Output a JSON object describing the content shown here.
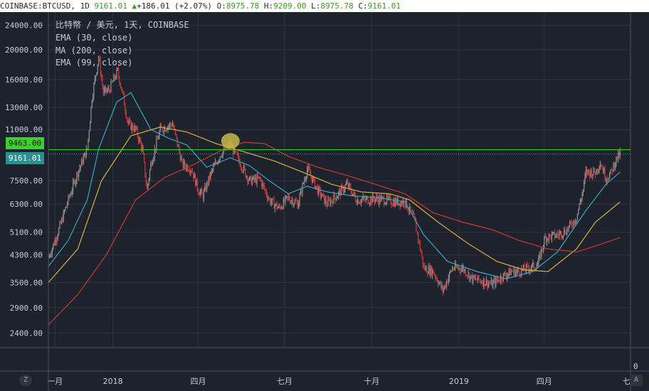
{
  "header": {
    "symbol": "COINBASE:BTCUSD, 1D",
    "last": "9161.01",
    "change_arrow": "▲",
    "change": "+186.01 (+2.07%)",
    "o_label": "O:",
    "o": "8975.78",
    "h_label": "H:",
    "h": "9209.00",
    "l_label": "L:",
    "l": "8975.78",
    "c_label": "C:",
    "c": "9161.01"
  },
  "overlay": {
    "title": "比特幣 / 美元, 1天, COINBASE",
    "indicators": [
      "EMA (30, close)",
      "MA (200, close)",
      "EMA (99, close)"
    ]
  },
  "price_badges": {
    "green_line": "9463.00",
    "last_price": "9161.01",
    "bottom_axis": "0"
  },
  "buttons": {
    "zoom": "Z",
    "auto": "A"
  },
  "colors": {
    "background": "#1e222d",
    "grid": "#2f3442",
    "candle_up": "#8f8f8f",
    "candle_down": "#c83a3a",
    "ema30": "#3aa7bf",
    "ma200": "#c83a34",
    "ema99": "#d4b33a",
    "level_line": "#3bd12a",
    "highlight": "#c9b64a"
  },
  "chart_data": {
    "type": "candlestick",
    "y_scale": "log",
    "ylim": [
      2150,
      26500
    ],
    "y_ticks": [
      24000,
      20000,
      16000,
      13000,
      11000,
      9463,
      7500,
      6300,
      5100,
      4300,
      3500,
      2900,
      2400
    ],
    "y_tick_labels": [
      "24000.00",
      "20000.00",
      "16000.00",
      "13000.00",
      "11000.00",
      "9463.00",
      "7500.00",
      "6300.00",
      "5100.00",
      "4300.00",
      "3500.00",
      "2900.00",
      "2400.00"
    ],
    "x_labels": [
      "一月",
      "2018",
      "四月",
      "七月",
      "十月",
      "2019",
      "四月",
      "七月"
    ],
    "x_range": [
      "2017-10-25",
      "2019-07-01"
    ],
    "x_label_dates": [
      "2017-11-01",
      "2018-01-01",
      "2018-04-01",
      "2018-07-01",
      "2018-10-01",
      "2019-01-01",
      "2019-04-01",
      "2019-07-01"
    ],
    "horizontal_level": 9463,
    "last_price": 9161.01,
    "highlight_point": {
      "date": "2018-05-05",
      "value": 10100
    },
    "series": [
      {
        "name": "BTCUSD",
        "closes": [
          [
            "2017-10-25",
            4200
          ],
          [
            "2017-11-05",
            5200
          ],
          [
            "2017-11-15",
            6500
          ],
          [
            "2017-11-25",
            8000
          ],
          [
            "2017-12-05",
            9500
          ],
          [
            "2017-12-10",
            14000
          ],
          [
            "2017-12-17",
            19000
          ],
          [
            "2017-12-22",
            14500
          ],
          [
            "2017-12-28",
            14800
          ],
          [
            "2018-01-06",
            17000
          ],
          [
            "2018-01-12",
            14000
          ],
          [
            "2018-01-17",
            11500
          ],
          [
            "2018-01-25",
            11000
          ],
          [
            "2018-02-01",
            9500
          ],
          [
            "2018-02-06",
            7000
          ],
          [
            "2018-02-10",
            8500
          ],
          [
            "2018-02-20",
            11000
          ],
          [
            "2018-03-05",
            11500
          ],
          [
            "2018-03-15",
            8500
          ],
          [
            "2018-03-25",
            8200
          ],
          [
            "2018-04-01",
            7000
          ],
          [
            "2018-04-06",
            6700
          ],
          [
            "2018-04-15",
            8000
          ],
          [
            "2018-04-25",
            9200
          ],
          [
            "2018-05-05",
            9800
          ],
          [
            "2018-05-15",
            8600
          ],
          [
            "2018-05-25",
            7500
          ],
          [
            "2018-06-05",
            7600
          ],
          [
            "2018-06-15",
            6500
          ],
          [
            "2018-06-25",
            6100
          ],
          [
            "2018-07-05",
            6600
          ],
          [
            "2018-07-15",
            6300
          ],
          [
            "2018-07-25",
            8200
          ],
          [
            "2018-08-05",
            7000
          ],
          [
            "2018-08-15",
            6300
          ],
          [
            "2018-08-25",
            6700
          ],
          [
            "2018-09-05",
            7300
          ],
          [
            "2018-09-15",
            6500
          ],
          [
            "2018-09-25",
            6500
          ],
          [
            "2018-10-05",
            6550
          ],
          [
            "2018-10-15",
            6500
          ],
          [
            "2018-10-25",
            6400
          ],
          [
            "2018-11-05",
            6400
          ],
          [
            "2018-11-15",
            5600
          ],
          [
            "2018-11-20",
            4700
          ],
          [
            "2018-11-25",
            3900
          ],
          [
            "2018-12-05",
            3800
          ],
          [
            "2018-12-15",
            3300
          ],
          [
            "2018-12-25",
            3900
          ],
          [
            "2019-01-05",
            3900
          ],
          [
            "2019-01-15",
            3600
          ],
          [
            "2019-01-25",
            3550
          ],
          [
            "2019-02-05",
            3450
          ],
          [
            "2019-02-15",
            3650
          ],
          [
            "2019-02-25",
            3800
          ],
          [
            "2019-03-05",
            3800
          ],
          [
            "2019-03-15",
            3900
          ],
          [
            "2019-03-25",
            4000
          ],
          [
            "2019-04-02",
            4900
          ],
          [
            "2019-04-15",
            5000
          ],
          [
            "2019-04-25",
            5200
          ],
          [
            "2019-05-05",
            5700
          ],
          [
            "2019-05-12",
            7000
          ],
          [
            "2019-05-15",
            8000
          ],
          [
            "2019-05-25",
            8000
          ],
          [
            "2019-05-30",
            8600
          ],
          [
            "2019-06-05",
            7700
          ],
          [
            "2019-06-10",
            7900
          ],
          [
            "2019-06-15",
            8700
          ],
          [
            "2019-06-20",
            9161
          ]
        ]
      },
      {
        "name": "EMA (30, close)",
        "points": [
          [
            "2017-10-25",
            3950
          ],
          [
            "2017-11-15",
            4800
          ],
          [
            "2017-12-05",
            6500
          ],
          [
            "2017-12-17",
            9500
          ],
          [
            "2018-01-05",
            13500
          ],
          [
            "2018-01-20",
            14500
          ],
          [
            "2018-02-10",
            11000
          ],
          [
            "2018-03-01",
            10300
          ],
          [
            "2018-03-20",
            9800
          ],
          [
            "2018-04-10",
            8300
          ],
          [
            "2018-05-05",
            8900
          ],
          [
            "2018-05-25",
            8400
          ],
          [
            "2018-06-15",
            7500
          ],
          [
            "2018-07-05",
            6800
          ],
          [
            "2018-07-25",
            7200
          ],
          [
            "2018-08-15",
            6900
          ],
          [
            "2018-09-10",
            6700
          ],
          [
            "2018-10-10",
            6600
          ],
          [
            "2018-11-05",
            6400
          ],
          [
            "2018-11-25",
            5000
          ],
          [
            "2018-12-20",
            4100
          ],
          [
            "2019-01-20",
            3800
          ],
          [
            "2019-02-20",
            3600
          ],
          [
            "2019-03-20",
            3800
          ],
          [
            "2019-04-15",
            4400
          ],
          [
            "2019-05-15",
            6000
          ],
          [
            "2019-06-05",
            7300
          ],
          [
            "2019-06-20",
            8000
          ]
        ]
      },
      {
        "name": "EMA (99, close)",
        "points": [
          [
            "2017-10-25",
            3500
          ],
          [
            "2017-11-25",
            4500
          ],
          [
            "2017-12-20",
            7500
          ],
          [
            "2018-01-20",
            10500
          ],
          [
            "2018-02-20",
            11200
          ],
          [
            "2018-03-20",
            10800
          ],
          [
            "2018-04-20",
            9900
          ],
          [
            "2018-05-20",
            9300
          ],
          [
            "2018-06-20",
            8700
          ],
          [
            "2018-07-20",
            8000
          ],
          [
            "2018-08-20",
            7300
          ],
          [
            "2018-09-20",
            6900
          ],
          [
            "2018-10-20",
            6800
          ],
          [
            "2018-11-10",
            6500
          ],
          [
            "2018-12-10",
            5500
          ],
          [
            "2019-01-10",
            4700
          ],
          [
            "2019-02-10",
            4100
          ],
          [
            "2019-03-10",
            3850
          ],
          [
            "2019-04-05",
            3800
          ],
          [
            "2019-05-05",
            4500
          ],
          [
            "2019-05-25",
            5500
          ],
          [
            "2019-06-20",
            6400
          ]
        ]
      },
      {
        "name": "MA (200, close)",
        "points": [
          [
            "2017-10-25",
            2550
          ],
          [
            "2017-11-25",
            3200
          ],
          [
            "2017-12-25",
            4300
          ],
          [
            "2018-01-25",
            6500
          ],
          [
            "2018-02-25",
            7700
          ],
          [
            "2018-03-25",
            8400
          ],
          [
            "2018-04-25",
            9400
          ],
          [
            "2018-05-20",
            10000
          ],
          [
            "2018-06-10",
            9900
          ],
          [
            "2018-07-05",
            9000
          ],
          [
            "2018-08-05",
            8300
          ],
          [
            "2018-09-05",
            7800
          ],
          [
            "2018-10-05",
            7300
          ],
          [
            "2018-11-05",
            6800
          ],
          [
            "2018-12-05",
            5900
          ],
          [
            "2019-01-05",
            5500
          ],
          [
            "2019-02-05",
            5200
          ],
          [
            "2019-03-05",
            4800
          ],
          [
            "2019-04-05",
            4500
          ],
          [
            "2019-05-05",
            4400
          ],
          [
            "2019-05-25",
            4600
          ],
          [
            "2019-06-20",
            4900
          ]
        ]
      }
    ]
  }
}
